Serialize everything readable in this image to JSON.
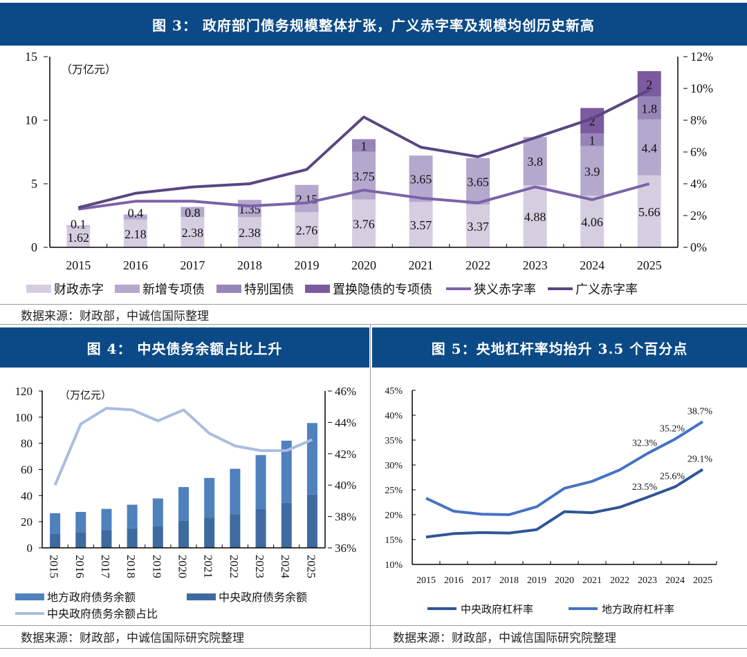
{
  "figure3": {
    "title": "图 3：  政府部门债务规模整体扩张，广义赤字率及规模均创历史新高",
    "source": "数据来源：财政部，中诚信国际整理"
  },
  "figure4": {
    "title": "图 4：  中央债务余额占比上升",
    "source": "数据来源：财政部，中诚信国际研究院整理"
  },
  "figure5": {
    "title": "图 5：央地杠杆率均抬升 3.5 个百分点",
    "source": "数据来源：财政部，中诚信国际研究院整理"
  },
  "chart_data": [
    {
      "type": "bar",
      "stacked": true,
      "unit_label": "（万亿元）",
      "categories": [
        "2015",
        "2016",
        "2017",
        "2018",
        "2019",
        "2020",
        "2021",
        "2022",
        "2023",
        "2024",
        "2025"
      ],
      "ylim": [
        0,
        15
      ],
      "yticks": [
        "0",
        "5",
        "10",
        "15"
      ],
      "y2lim": [
        0,
        12
      ],
      "y2ticks": [
        "0%",
        "2%",
        "4%",
        "6%",
        "8%",
        "10%",
        "12%"
      ],
      "series": [
        {
          "name": "财政赤字",
          "color": "#d5cee1",
          "values": [
            1.62,
            2.18,
            2.38,
            2.38,
            2.76,
            3.76,
            3.57,
            3.37,
            4.88,
            4.06,
            5.66
          ]
        },
        {
          "name": "新增专项债",
          "color": "#b5a8cd",
          "values": [
            0.1,
            0.4,
            0.8,
            1.35,
            2.15,
            3.75,
            3.65,
            3.65,
            3.8,
            3.9,
            4.4
          ]
        },
        {
          "name": "特别国债",
          "color": "#9885b8",
          "values": [
            0,
            0,
            0,
            0,
            0,
            1,
            0,
            0,
            0,
            1,
            1.8
          ]
        },
        {
          "name": "置换隐债的专项债",
          "color": "#7b5a9f",
          "values": [
            0,
            0,
            0,
            0,
            0,
            0,
            0,
            0,
            0,
            2,
            2
          ]
        }
      ],
      "lines": [
        {
          "name": "狭义赤字率",
          "color": "#7b62a8",
          "axis": "right",
          "values": [
            2.4,
            2.9,
            2.9,
            2.6,
            2.8,
            3.6,
            3.1,
            2.8,
            3.8,
            3.0,
            4.0
          ]
        },
        {
          "name": "广义赤字率",
          "color": "#5a4682",
          "axis": "right",
          "values": [
            2.5,
            3.4,
            3.8,
            4.0,
            4.9,
            8.2,
            6.3,
            5.7,
            6.9,
            8.1,
            9.9
          ]
        }
      ]
    },
    {
      "type": "bar",
      "stacked": true,
      "unit_label": "（万亿元）",
      "categories": [
        "2015",
        "2016",
        "2017",
        "2018",
        "2019",
        "2020",
        "2021",
        "2022",
        "2023",
        "2024",
        "2025"
      ],
      "ylim": [
        0,
        120
      ],
      "yticks": [
        "0",
        "20",
        "40",
        "60",
        "80",
        "100",
        "120"
      ],
      "y2lim": [
        36,
        46
      ],
      "y2ticks": [
        "36%",
        "38%",
        "40%",
        "42%",
        "44%",
        "46%"
      ],
      "series": [
        {
          "name": "中央政府债务余额",
          "color": "#3f6a9f",
          "values": [
            10.6,
            12.0,
            13.5,
            14.9,
            16.8,
            20.8,
            23.2,
            25.6,
            30.0,
            34.5,
            40.8
          ]
        },
        {
          "name": "地方政府债务余额",
          "color": "#4f81bd",
          "values": [
            15.9,
            15.5,
            16.3,
            18.1,
            21.0,
            25.7,
            30.3,
            34.9,
            41.0,
            47.5,
            54.7
          ]
        }
      ],
      "lines": [
        {
          "name": "中央政府债务余额占比",
          "color": "#a9bddf",
          "axis": "right",
          "values": [
            40.0,
            43.9,
            44.9,
            44.8,
            44.1,
            44.8,
            43.3,
            42.5,
            42.2,
            42.2,
            42.9
          ]
        }
      ]
    },
    {
      "type": "line",
      "categories": [
        "2015",
        "2016",
        "2017",
        "2018",
        "2019",
        "2020",
        "2021",
        "2022",
        "2023",
        "2024",
        "2025"
      ],
      "ylim": [
        10,
        45
      ],
      "yticks": [
        "10%",
        "15%",
        "20%",
        "25%",
        "30%",
        "35%",
        "40%",
        "45%"
      ],
      "series": [
        {
          "name": "中央政府杠杆率",
          "color": "#2f5597",
          "values": [
            15.5,
            16.2,
            16.4,
            16.3,
            17.0,
            20.6,
            20.4,
            21.5,
            23.5,
            25.6,
            29.1
          ],
          "labels": {
            "8": "23.5%",
            "9": "25.6%",
            "10": "29.1%"
          }
        },
        {
          "name": "地方政府杠杆率",
          "color": "#4472c4",
          "values": [
            23.3,
            20.7,
            20.1,
            20.0,
            21.6,
            25.3,
            26.7,
            29.0,
            32.3,
            35.2,
            38.7
          ],
          "labels": {
            "8": "32.3%",
            "9": "35.2%",
            "10": "38.7%"
          }
        }
      ]
    }
  ]
}
